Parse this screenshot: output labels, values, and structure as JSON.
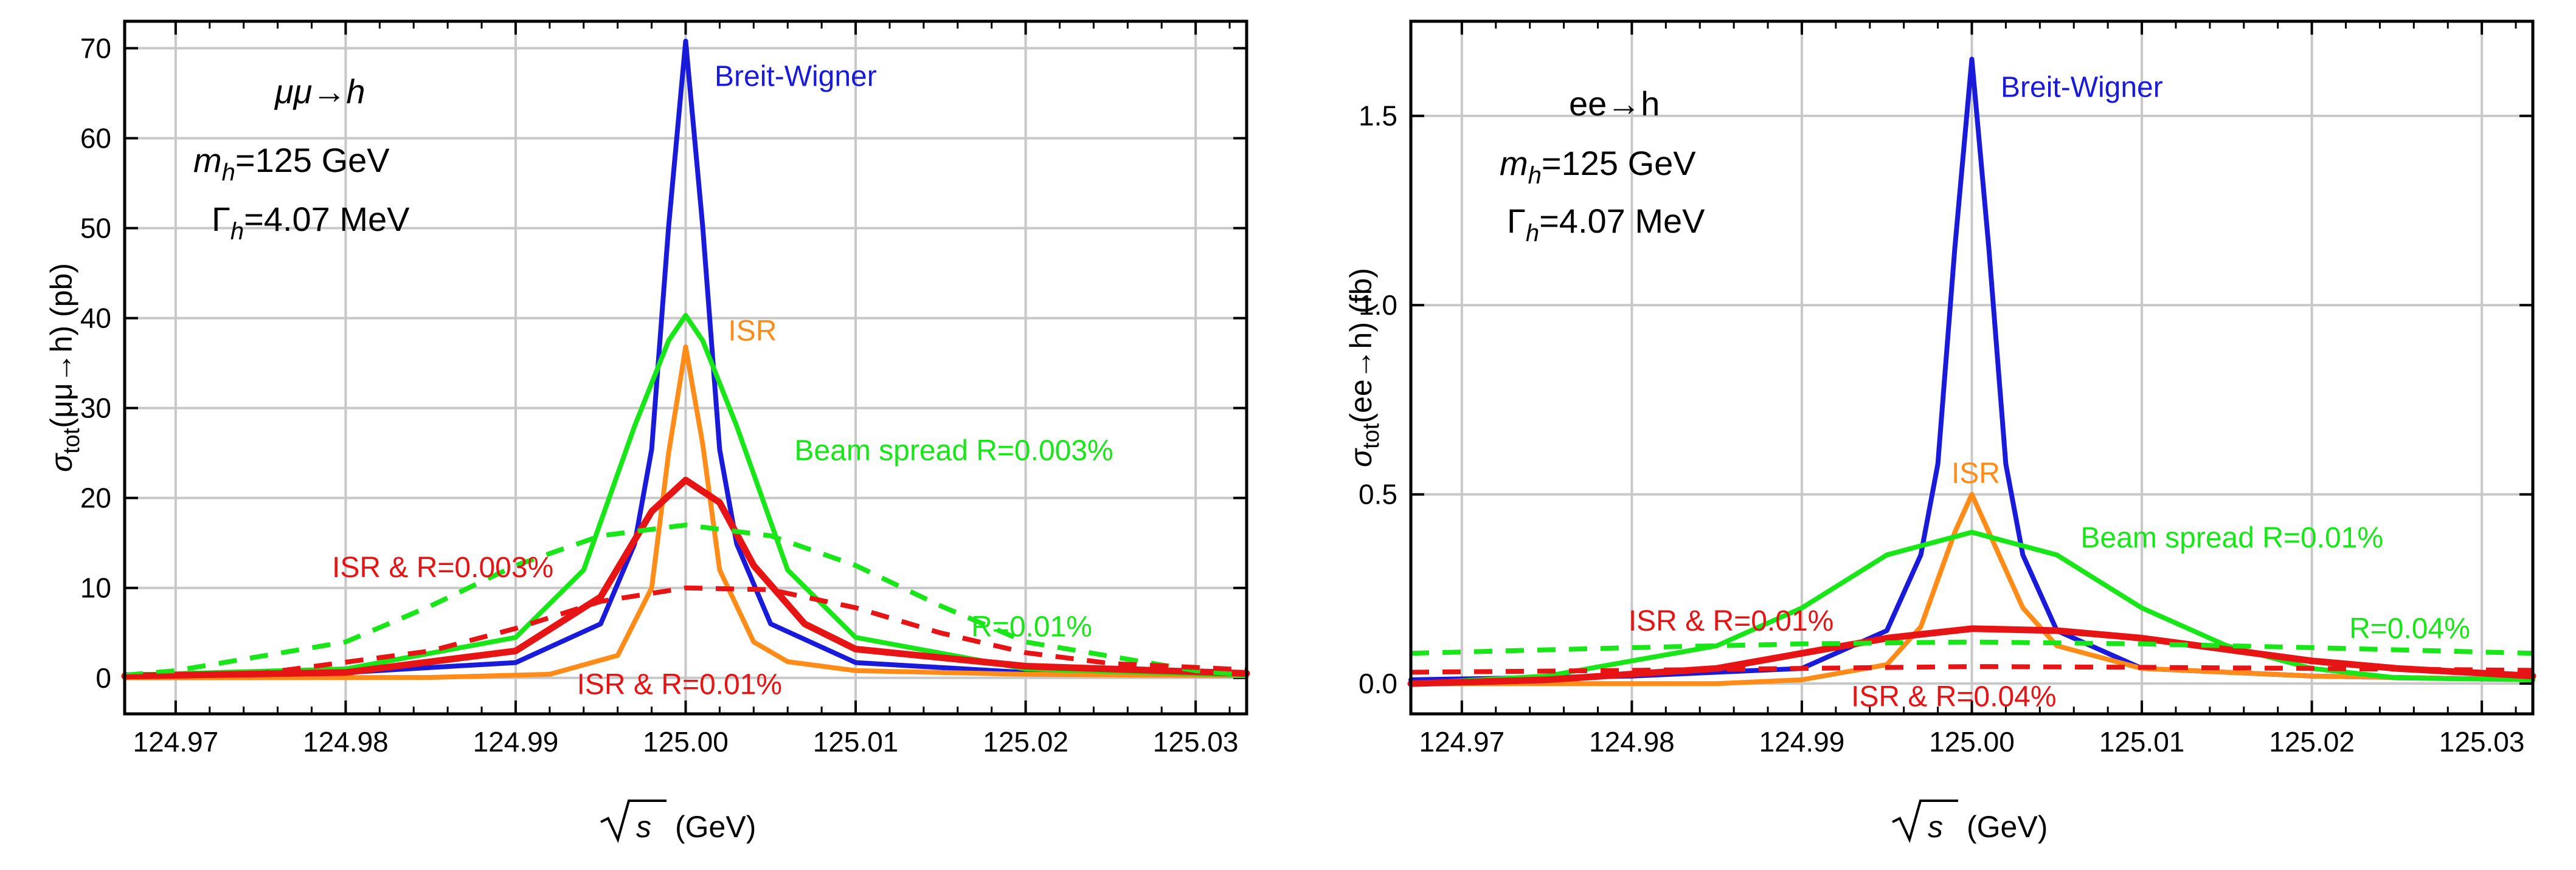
{
  "chart_data": [
    {
      "id": "mumu",
      "type": "line",
      "xlabel_radical": "s",
      "xlabel_units": "(GeV)",
      "ylabel": "σtot(μμ→h) (pb)",
      "ylabel_parts": {
        "sigma": "σ",
        "sub": "tot",
        "rest": "(μμ→h) (pb)"
      },
      "xlim": [
        124.967,
        125.033
      ],
      "ylim": [
        -4,
        73
      ],
      "xticks": [
        124.97,
        124.98,
        124.99,
        125.0,
        125.01,
        125.02,
        125.03
      ],
      "xtick_labels": [
        "124.97",
        "124.98",
        "124.99",
        "125.00",
        "125.01",
        "125.02",
        "125.03"
      ],
      "yticks": [
        0,
        10,
        20,
        30,
        40,
        50,
        60,
        70
      ],
      "ytick_labels": [
        "0",
        "10",
        "20",
        "30",
        "40",
        "50",
        "60",
        "70"
      ],
      "annotations": {
        "process": "μμ→h",
        "mass": "mh=125 GeV",
        "width": "Γh=4.07 MeV"
      },
      "annotation_parts": {
        "process": "μμ→h",
        "mass_sym": "m",
        "mass_sub": "h",
        "mass_rest": "=125 GeV",
        "width_sym": "Γ",
        "width_sub": "h",
        "width_rest": "=4.07 MeV"
      },
      "series": [
        {
          "name": "Breit-Wigner",
          "color": "#1a1adb",
          "dash": "solid",
          "values": [
            [
              124.967,
              0.35
            ],
            [
              124.98,
              0.6
            ],
            [
              124.99,
              1.7
            ],
            [
              124.995,
              6.0
            ],
            [
              124.997,
              14.9
            ],
            [
              124.998,
              25.4
            ],
            [
              124.999,
              50.2
            ],
            [
              125.0,
              70.8
            ],
            [
              125.001,
              50.2
            ],
            [
              125.002,
              25.4
            ],
            [
              125.003,
              14.9
            ],
            [
              125.005,
              6.0
            ],
            [
              125.01,
              1.7
            ],
            [
              125.02,
              0.6
            ],
            [
              125.033,
              0.33
            ]
          ]
        },
        {
          "name": "ISR",
          "color": "#ff8c19",
          "dash": "solid",
          "values": [
            [
              124.967,
              0.0
            ],
            [
              124.985,
              0.05
            ],
            [
              124.992,
              0.4
            ],
            [
              124.996,
              2.5
            ],
            [
              124.998,
              10.0
            ],
            [
              124.999,
              25.0
            ],
            [
              125.0,
              36.8
            ],
            [
              125.001,
              26.0
            ],
            [
              125.002,
              12.0
            ],
            [
              125.004,
              4.0
            ],
            [
              125.006,
              1.8
            ],
            [
              125.01,
              0.8
            ],
            [
              125.02,
              0.4
            ],
            [
              125.033,
              0.25
            ]
          ]
        },
        {
          "name": "Beam spread R=0.003%",
          "color": "#19e619",
          "dash": "solid",
          "values": [
            [
              124.967,
              0.3
            ],
            [
              124.98,
              1.0
            ],
            [
              124.99,
              4.5
            ],
            [
              124.994,
              12.0
            ],
            [
              124.997,
              28.0
            ],
            [
              124.999,
              37.5
            ],
            [
              125.0,
              40.3
            ],
            [
              125.001,
              37.5
            ],
            [
              125.003,
              28.0
            ],
            [
              125.006,
              12.0
            ],
            [
              125.01,
              4.5
            ],
            [
              125.02,
              1.0
            ],
            [
              125.033,
              0.3
            ]
          ]
        },
        {
          "name": "ISR & R=0.003%",
          "color": "#e61414",
          "dash": "solid",
          "values": [
            [
              124.967,
              0.2
            ],
            [
              124.98,
              0.6
            ],
            [
              124.99,
              3.0
            ],
            [
              124.995,
              9.0
            ],
            [
              124.998,
              18.5
            ],
            [
              125.0,
              22.0
            ],
            [
              125.002,
              19.5
            ],
            [
              125.004,
              12.5
            ],
            [
              125.007,
              6.0
            ],
            [
              125.01,
              3.2
            ],
            [
              125.02,
              1.3
            ],
            [
              125.033,
              0.5
            ]
          ]
        },
        {
          "name": "R=0.01%",
          "color": "#19e619",
          "dash": "dashed",
          "values": [
            [
              124.967,
              0.3
            ],
            [
              124.97,
              0.8
            ],
            [
              124.98,
              4.0
            ],
            [
              124.985,
              8.0
            ],
            [
              124.99,
              12.5
            ],
            [
              124.995,
              15.8
            ],
            [
              125.0,
              17.0
            ],
            [
              125.005,
              15.8
            ],
            [
              125.01,
              12.5
            ],
            [
              125.015,
              8.0
            ],
            [
              125.02,
              4.0
            ],
            [
              125.03,
              0.8
            ],
            [
              125.033,
              0.3
            ]
          ]
        },
        {
          "name": "ISR & R=0.01%",
          "color": "#e61414",
          "dash": "dashed",
          "values": [
            [
              124.967,
              0.1
            ],
            [
              124.975,
              0.5
            ],
            [
              124.985,
              3.0
            ],
            [
              124.99,
              5.5
            ],
            [
              124.995,
              8.5
            ],
            [
              125.0,
              10.0
            ],
            [
              125.005,
              9.8
            ],
            [
              125.01,
              7.8
            ],
            [
              125.015,
              5.0
            ],
            [
              125.02,
              2.8
            ],
            [
              125.025,
              1.6
            ],
            [
              125.033,
              0.9
            ]
          ]
        }
      ],
      "labels": [
        {
          "text": "Breit-Wigner",
          "color": "#1a1adb",
          "x": 125.0017,
          "y": 65.8
        },
        {
          "text": "ISR",
          "color": "#ff8c19",
          "x": 125.0025,
          "y": 37.5
        },
        {
          "text": "Beam spread R=0.003%",
          "color": "#19e619",
          "x": 125.0064,
          "y": 24.2
        },
        {
          "text": "ISR & R=0.003%",
          "color": "#e61414",
          "x": 124.9792,
          "y": 11.2
        },
        {
          "text": "R=0.01%",
          "color": "#19e619",
          "x": 125.0168,
          "y": 4.6
        },
        {
          "text": "ISR & R=0.01%",
          "color": "#e61414",
          "x": 124.9936,
          "y": -1.8
        }
      ]
    },
    {
      "id": "ee",
      "type": "line",
      "xlabel_radical": "s",
      "xlabel_units": "(GeV)",
      "ylabel": "σtot(ee→h) (fb)",
      "ylabel_parts": {
        "sigma": "σ",
        "sub": "tot",
        "rest": "(ee→h) (fb)"
      },
      "xlim": [
        124.967,
        125.033
      ],
      "ylim": [
        -0.08,
        1.75
      ],
      "xticks": [
        124.97,
        124.98,
        124.99,
        125.0,
        125.01,
        125.02,
        125.03
      ],
      "xtick_labels": [
        "124.97",
        "124.98",
        "124.99",
        "125.00",
        "125.01",
        "125.02",
        "125.03"
      ],
      "yticks": [
        0,
        0.5,
        1.0,
        1.5
      ],
      "ytick_labels": [
        "0.0",
        "0.5",
        "1.0",
        "1.5"
      ],
      "annotations": {
        "process": "ee→h",
        "mass": "mh=125 GeV",
        "width": "Γh=4.07 MeV"
      },
      "annotation_parts": {
        "process": "ee→h",
        "mass_sym": "m",
        "mass_sub": "h",
        "mass_rest": "=125 GeV",
        "width_sym": "Γ",
        "width_sub": "h",
        "width_rest": "=4.07 MeV"
      },
      "series": [
        {
          "name": "Breit-Wigner",
          "color": "#1a1adb",
          "dash": "solid",
          "values": [
            [
              124.967,
              0.01
            ],
            [
              124.98,
              0.02
            ],
            [
              124.99,
              0.04
            ],
            [
              124.995,
              0.14
            ],
            [
              124.997,
              0.34
            ],
            [
              124.998,
              0.58
            ],
            [
              124.999,
              1.15
            ],
            [
              125.0,
              1.65
            ],
            [
              125.001,
              1.15
            ],
            [
              125.002,
              0.58
            ],
            [
              125.003,
              0.34
            ],
            [
              125.005,
              0.14
            ],
            [
              125.01,
              0.04
            ],
            [
              125.02,
              0.02
            ],
            [
              125.033,
              0.01
            ]
          ]
        },
        {
          "name": "ISR",
          "color": "#ff8c19",
          "dash": "solid",
          "values": [
            [
              124.967,
              0.0
            ],
            [
              124.985,
              0.0
            ],
            [
              124.99,
              0.01
            ],
            [
              124.995,
              0.05
            ],
            [
              124.997,
              0.15
            ],
            [
              124.999,
              0.4
            ],
            [
              125.0,
              0.5
            ],
            [
              125.001,
              0.4
            ],
            [
              125.003,
              0.2
            ],
            [
              125.005,
              0.1
            ],
            [
              125.01,
              0.04
            ],
            [
              125.02,
              0.02
            ],
            [
              125.033,
              0.01
            ]
          ]
        },
        {
          "name": "Beam spread R=0.01%",
          "color": "#19e619",
          "dash": "solid",
          "values": [
            [
              124.967,
              0.0
            ],
            [
              124.975,
              0.02
            ],
            [
              124.985,
              0.1
            ],
            [
              124.99,
              0.2
            ],
            [
              124.995,
              0.34
            ],
            [
              125.0,
              0.4
            ],
            [
              125.005,
              0.34
            ],
            [
              125.01,
              0.2
            ],
            [
              125.015,
              0.1
            ],
            [
              125.02,
              0.04
            ],
            [
              125.025,
              0.015
            ],
            [
              125.033,
              0.01
            ]
          ]
        },
        {
          "name": "ISR & R=0.01%",
          "color": "#e61414",
          "dash": "solid",
          "values": [
            [
              124.967,
              0.0
            ],
            [
              124.975,
              0.01
            ],
            [
              124.985,
              0.04
            ],
            [
              124.99,
              0.08
            ],
            [
              124.995,
              0.12
            ],
            [
              125.0,
              0.145
            ],
            [
              125.005,
              0.14
            ],
            [
              125.01,
              0.12
            ],
            [
              125.015,
              0.09
            ],
            [
              125.02,
              0.06
            ],
            [
              125.025,
              0.04
            ],
            [
              125.033,
              0.02
            ]
          ]
        },
        {
          "name": "R=0.04%",
          "color": "#19e619",
          "dash": "dashed",
          "values": [
            [
              124.967,
              0.08
            ],
            [
              124.98,
              0.095
            ],
            [
              124.99,
              0.105
            ],
            [
              125.0,
              0.11
            ],
            [
              125.01,
              0.105
            ],
            [
              125.02,
              0.095
            ],
            [
              125.033,
              0.08
            ]
          ]
        },
        {
          "name": "ISR & R=0.04%",
          "color": "#e61414",
          "dash": "dashed",
          "values": [
            [
              124.967,
              0.03
            ],
            [
              124.98,
              0.035
            ],
            [
              124.99,
              0.04
            ],
            [
              125.0,
              0.045
            ],
            [
              125.01,
              0.043
            ],
            [
              125.02,
              0.04
            ],
            [
              125.033,
              0.035
            ]
          ]
        }
      ],
      "labels": [
        {
          "text": "Breit-Wigner",
          "color": "#1a1adb",
          "x": 125.0017,
          "y": 1.55
        },
        {
          "text": "ISR",
          "color": "#ff8c19",
          "x": 124.9988,
          "y": 0.53
        },
        {
          "text": "Beam spread R=0.01%",
          "color": "#19e619",
          "x": 125.0064,
          "y": 0.36
        },
        {
          "text": "ISR & R=0.01%",
          "color": "#e61414",
          "x": 124.9798,
          "y": 0.14
        },
        {
          "text": "R=0.04%",
          "color": "#19e619",
          "x": 125.0222,
          "y": 0.12
        },
        {
          "text": "ISR & R=0.04%",
          "color": "#e61414",
          "x": 124.9929,
          "y": -0.06
        }
      ]
    }
  ]
}
